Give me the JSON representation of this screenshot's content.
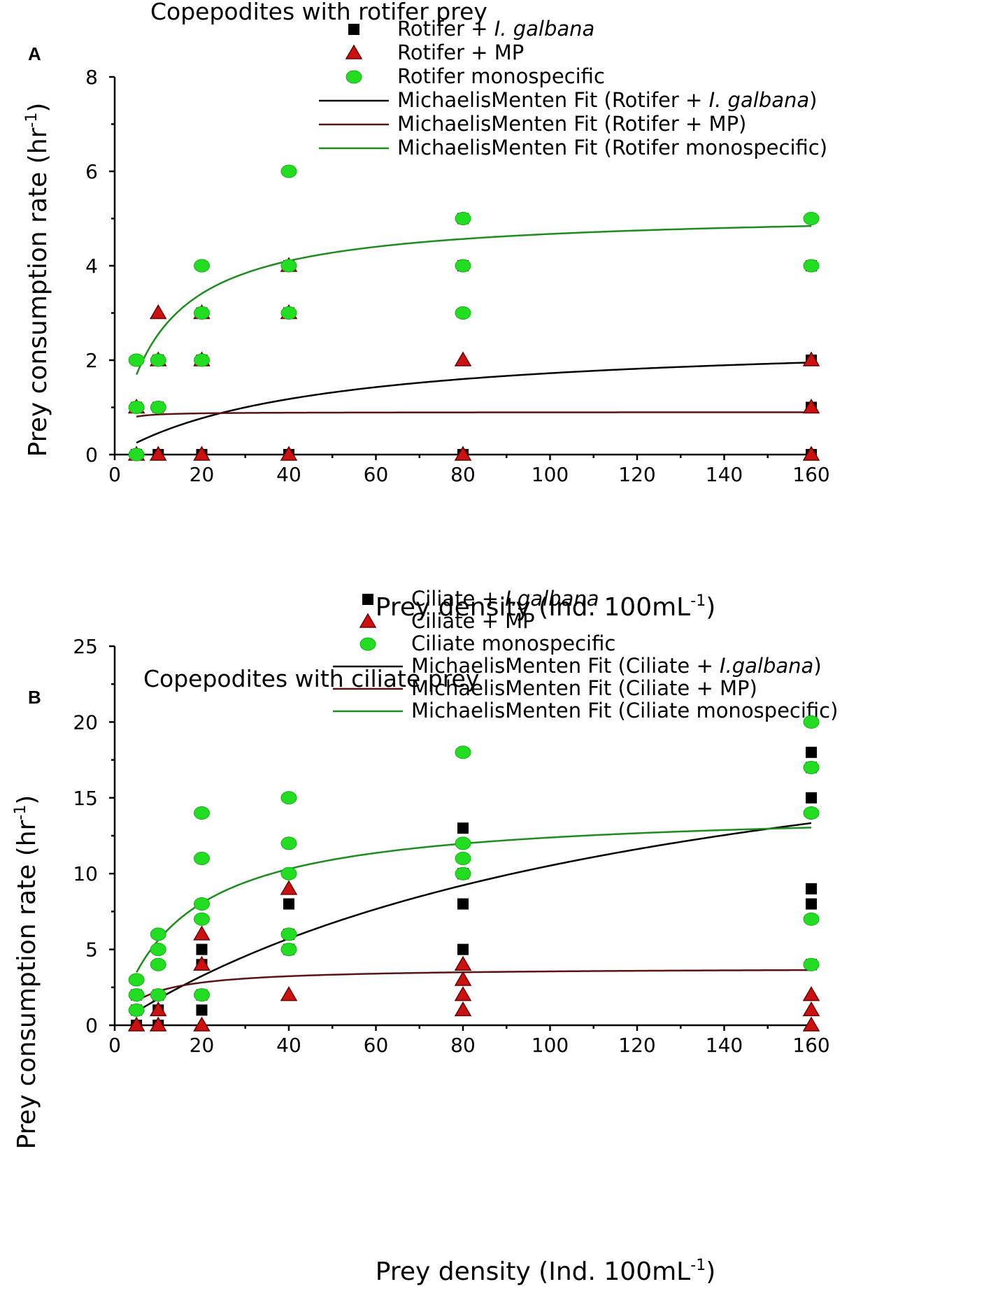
{
  "chart_data": [
    {
      "panel": "A",
      "type": "scatter",
      "title": "Copepodites with rotifer prey",
      "xlabel": "Prey density (Ind. 100mL",
      "xlabel_sup": "-1",
      "xlabel_close": ")",
      "ylabel": "Prey consumption rate (hr",
      "ylabel_sup": "-1",
      "ylabel_close": ")",
      "xlim": [
        0,
        160
      ],
      "ylim": [
        0,
        8
      ],
      "xticks": [
        "0",
        "20",
        "40",
        "60",
        "80",
        "100",
        "120",
        "140",
        "160"
      ],
      "yticks": [
        "0",
        "2",
        "4",
        "6",
        "8"
      ],
      "legend": [
        {
          "marker": "square",
          "color": "#000000",
          "parts": [
            {
              "t": "Rotifer + ",
              "i": false
            },
            {
              "t": "I. galbana",
              "i": true
            }
          ]
        },
        {
          "marker": "triangle",
          "color": "#cc1111",
          "parts": [
            {
              "t": "Rotifer + MP",
              "i": false
            }
          ]
        },
        {
          "marker": "circle",
          "color": "#22dd22",
          "parts": [
            {
              "t": "Rotifer monospecific",
              "i": false
            }
          ]
        },
        {
          "marker": "line",
          "color": "#000000",
          "parts": [
            {
              "t": "MichaelisMenten Fit (Rotifer + ",
              "i": false
            },
            {
              "t": "I. galbana",
              "i": true
            },
            {
              "t": ")",
              "i": false
            }
          ]
        },
        {
          "marker": "line",
          "color": "#5a1414",
          "parts": [
            {
              "t": "MichaelisMenten Fit (Rotifer + MP)",
              "i": false
            }
          ]
        },
        {
          "marker": "line",
          "color": "#1e8c1e",
          "parts": [
            {
              "t": "MichaelisMenten Fit (Rotifer monospecific)",
              "i": false
            }
          ]
        }
      ],
      "x_positions": {
        "5": 5,
        "10": 10,
        "20": 20,
        "40": 40,
        "80": 80,
        "160": 160
      },
      "series": [
        {
          "name": "Rotifer + I. galbana",
          "marker": "square",
          "color": "#000000",
          "points": [
            [
              5,
              0
            ],
            [
              5,
              1
            ],
            [
              10,
              0
            ],
            [
              10,
              1
            ],
            [
              10,
              2
            ],
            [
              20,
              0
            ],
            [
              20,
              2
            ],
            [
              20,
              3
            ],
            [
              40,
              0
            ],
            [
              40,
              3
            ],
            [
              40,
              4
            ],
            [
              80,
              0
            ],
            [
              80,
              4
            ],
            [
              80,
              5
            ],
            [
              160,
              0
            ],
            [
              160,
              1
            ],
            [
              160,
              2
            ],
            [
              160,
              4
            ]
          ]
        },
        {
          "name": "Rotifer + MP",
          "marker": "triangle",
          "color": "#cc1111",
          "points": [
            [
              5,
              0
            ],
            [
              5,
              1
            ],
            [
              10,
              0
            ],
            [
              10,
              2
            ],
            [
              10,
              3
            ],
            [
              20,
              0
            ],
            [
              20,
              2
            ],
            [
              20,
              3
            ],
            [
              40,
              0
            ],
            [
              40,
              3
            ],
            [
              40,
              4
            ],
            [
              80,
              0
            ],
            [
              80,
              2
            ],
            [
              160,
              0
            ],
            [
              160,
              1
            ],
            [
              160,
              2
            ]
          ]
        },
        {
          "name": "Rotifer monospecific",
          "marker": "circle",
          "color": "#22dd22",
          "points": [
            [
              5,
              0
            ],
            [
              5,
              1
            ],
            [
              5,
              2
            ],
            [
              10,
              1
            ],
            [
              10,
              2
            ],
            [
              20,
              2
            ],
            [
              20,
              3
            ],
            [
              20,
              4
            ],
            [
              40,
              3
            ],
            [
              40,
              4
            ],
            [
              40,
              6
            ],
            [
              80,
              3
            ],
            [
              80,
              4
            ],
            [
              80,
              5
            ],
            [
              160,
              4
            ],
            [
              160,
              5
            ]
          ]
        }
      ],
      "fits": [
        {
          "name": "MichaelisMenten Fit (Rotifer + I. galbana)",
          "color": "#000000",
          "vmax": 2.5,
          "km": 45,
          "x_range": [
            5,
            160
          ]
        },
        {
          "name": "MichaelisMenten Fit (Rotifer + MP)",
          "color": "#5a1414",
          "vmax": 0.9,
          "km": 0.6,
          "x_range": [
            5,
            160
          ]
        },
        {
          "name": "MichaelisMenten Fit (Rotifer monospecific)",
          "color": "#1e8c1e",
          "vmax": 5.15,
          "km": 10.2,
          "x_range": [
            5,
            160
          ]
        }
      ]
    },
    {
      "panel": "B",
      "type": "scatter",
      "title": "Copepodites with ciliate prey",
      "xlabel": "Prey density (Ind. 100mL",
      "xlabel_sup": "-1",
      "xlabel_close": ")",
      "ylabel": "Prey consumption rate (hr",
      "ylabel_sup": "-1",
      "ylabel_close": ")",
      "xlim": [
        0,
        160
      ],
      "ylim": [
        0,
        25
      ],
      "xticks": [
        "0",
        "20",
        "40",
        "60",
        "80",
        "100",
        "120",
        "140",
        "160"
      ],
      "yticks": [
        "0",
        "5",
        "10",
        "15",
        "20",
        "25"
      ],
      "legend": [
        {
          "marker": "square",
          "color": "#000000",
          "parts": [
            {
              "t": "Ciliate + ",
              "i": false
            },
            {
              "t": "I.galbana",
              "i": true
            }
          ]
        },
        {
          "marker": "triangle",
          "color": "#cc1111",
          "parts": [
            {
              "t": "Ciliate + MP",
              "i": false
            }
          ]
        },
        {
          "marker": "circle",
          "color": "#22dd22",
          "parts": [
            {
              "t": "Ciliate monospecific",
              "i": false
            }
          ]
        },
        {
          "marker": "line",
          "color": "#000000",
          "parts": [
            {
              "t": "MichaelisMenten Fit (Ciliate + ",
              "i": false
            },
            {
              "t": "I.galbana",
              "i": true
            },
            {
              "t": ")",
              "i": false
            }
          ]
        },
        {
          "marker": "line",
          "color": "#5a1414",
          "parts": [
            {
              "t": "MichaelisMenten Fit (Ciliate + MP)",
              "i": false
            }
          ]
        },
        {
          "marker": "line",
          "color": "#1e8c1e",
          "parts": [
            {
              "t": "MichaelisMenten Fit (Ciliate monospecific)",
              "i": false
            }
          ]
        }
      ],
      "series": [
        {
          "name": "Ciliate + I.galbana",
          "marker": "square",
          "color": "#000000",
          "points": [
            [
              5,
              0
            ],
            [
              5,
              1
            ],
            [
              5,
              2
            ],
            [
              10,
              0
            ],
            [
              10,
              1
            ],
            [
              10,
              2
            ],
            [
              20,
              1
            ],
            [
              20,
              2
            ],
            [
              20,
              4
            ],
            [
              20,
              5
            ],
            [
              40,
              5
            ],
            [
              40,
              6
            ],
            [
              40,
              8
            ],
            [
              80,
              5
            ],
            [
              80,
              8
            ],
            [
              80,
              10
            ],
            [
              80,
              13
            ],
            [
              160,
              4
            ],
            [
              160,
              8
            ],
            [
              160,
              9
            ],
            [
              160,
              15
            ],
            [
              160,
              17
            ],
            [
              160,
              18
            ]
          ]
        },
        {
          "name": "Ciliate + MP",
          "marker": "triangle",
          "color": "#cc1111",
          "points": [
            [
              5,
              0
            ],
            [
              10,
              0
            ],
            [
              10,
              1
            ],
            [
              20,
              0
            ],
            [
              20,
              4
            ],
            [
              20,
              6
            ],
            [
              40,
              2
            ],
            [
              40,
              9
            ],
            [
              80,
              1
            ],
            [
              80,
              2
            ],
            [
              80,
              3
            ],
            [
              80,
              4
            ],
            [
              160,
              0
            ],
            [
              160,
              1
            ],
            [
              160,
              2
            ]
          ]
        },
        {
          "name": "Ciliate monospecific",
          "marker": "circle",
          "color": "#22dd22",
          "points": [
            [
              5,
              1
            ],
            [
              5,
              2
            ],
            [
              5,
              3
            ],
            [
              10,
              2
            ],
            [
              10,
              4
            ],
            [
              10,
              5
            ],
            [
              10,
              6
            ],
            [
              20,
              2
            ],
            [
              20,
              7
            ],
            [
              20,
              8
            ],
            [
              20,
              11
            ],
            [
              20,
              14
            ],
            [
              40,
              5
            ],
            [
              40,
              6
            ],
            [
              40,
              10
            ],
            [
              40,
              12
            ],
            [
              40,
              15
            ],
            [
              80,
              10
            ],
            [
              80,
              11
            ],
            [
              80,
              12
            ],
            [
              80,
              18
            ],
            [
              160,
              4
            ],
            [
              160,
              7
            ],
            [
              160,
              14
            ],
            [
              160,
              17
            ],
            [
              160,
              20
            ]
          ]
        }
      ],
      "fits": [
        {
          "name": "MichaelisMenten Fit (Ciliate + I.galbana)",
          "color": "#000000",
          "vmax": 24,
          "km": 128,
          "x_range": [
            5,
            160
          ]
        },
        {
          "name": "MichaelisMenten Fit (Ciliate + MP)",
          "color": "#5a1414",
          "vmax": 3.8,
          "km": 7,
          "x_range": [
            5,
            160
          ]
        },
        {
          "name": "MichaelisMenten Fit (Ciliate monospecific)",
          "color": "#1e8c1e",
          "vmax": 14.3,
          "km": 15.5,
          "x_range": [
            5,
            160
          ]
        }
      ]
    }
  ]
}
